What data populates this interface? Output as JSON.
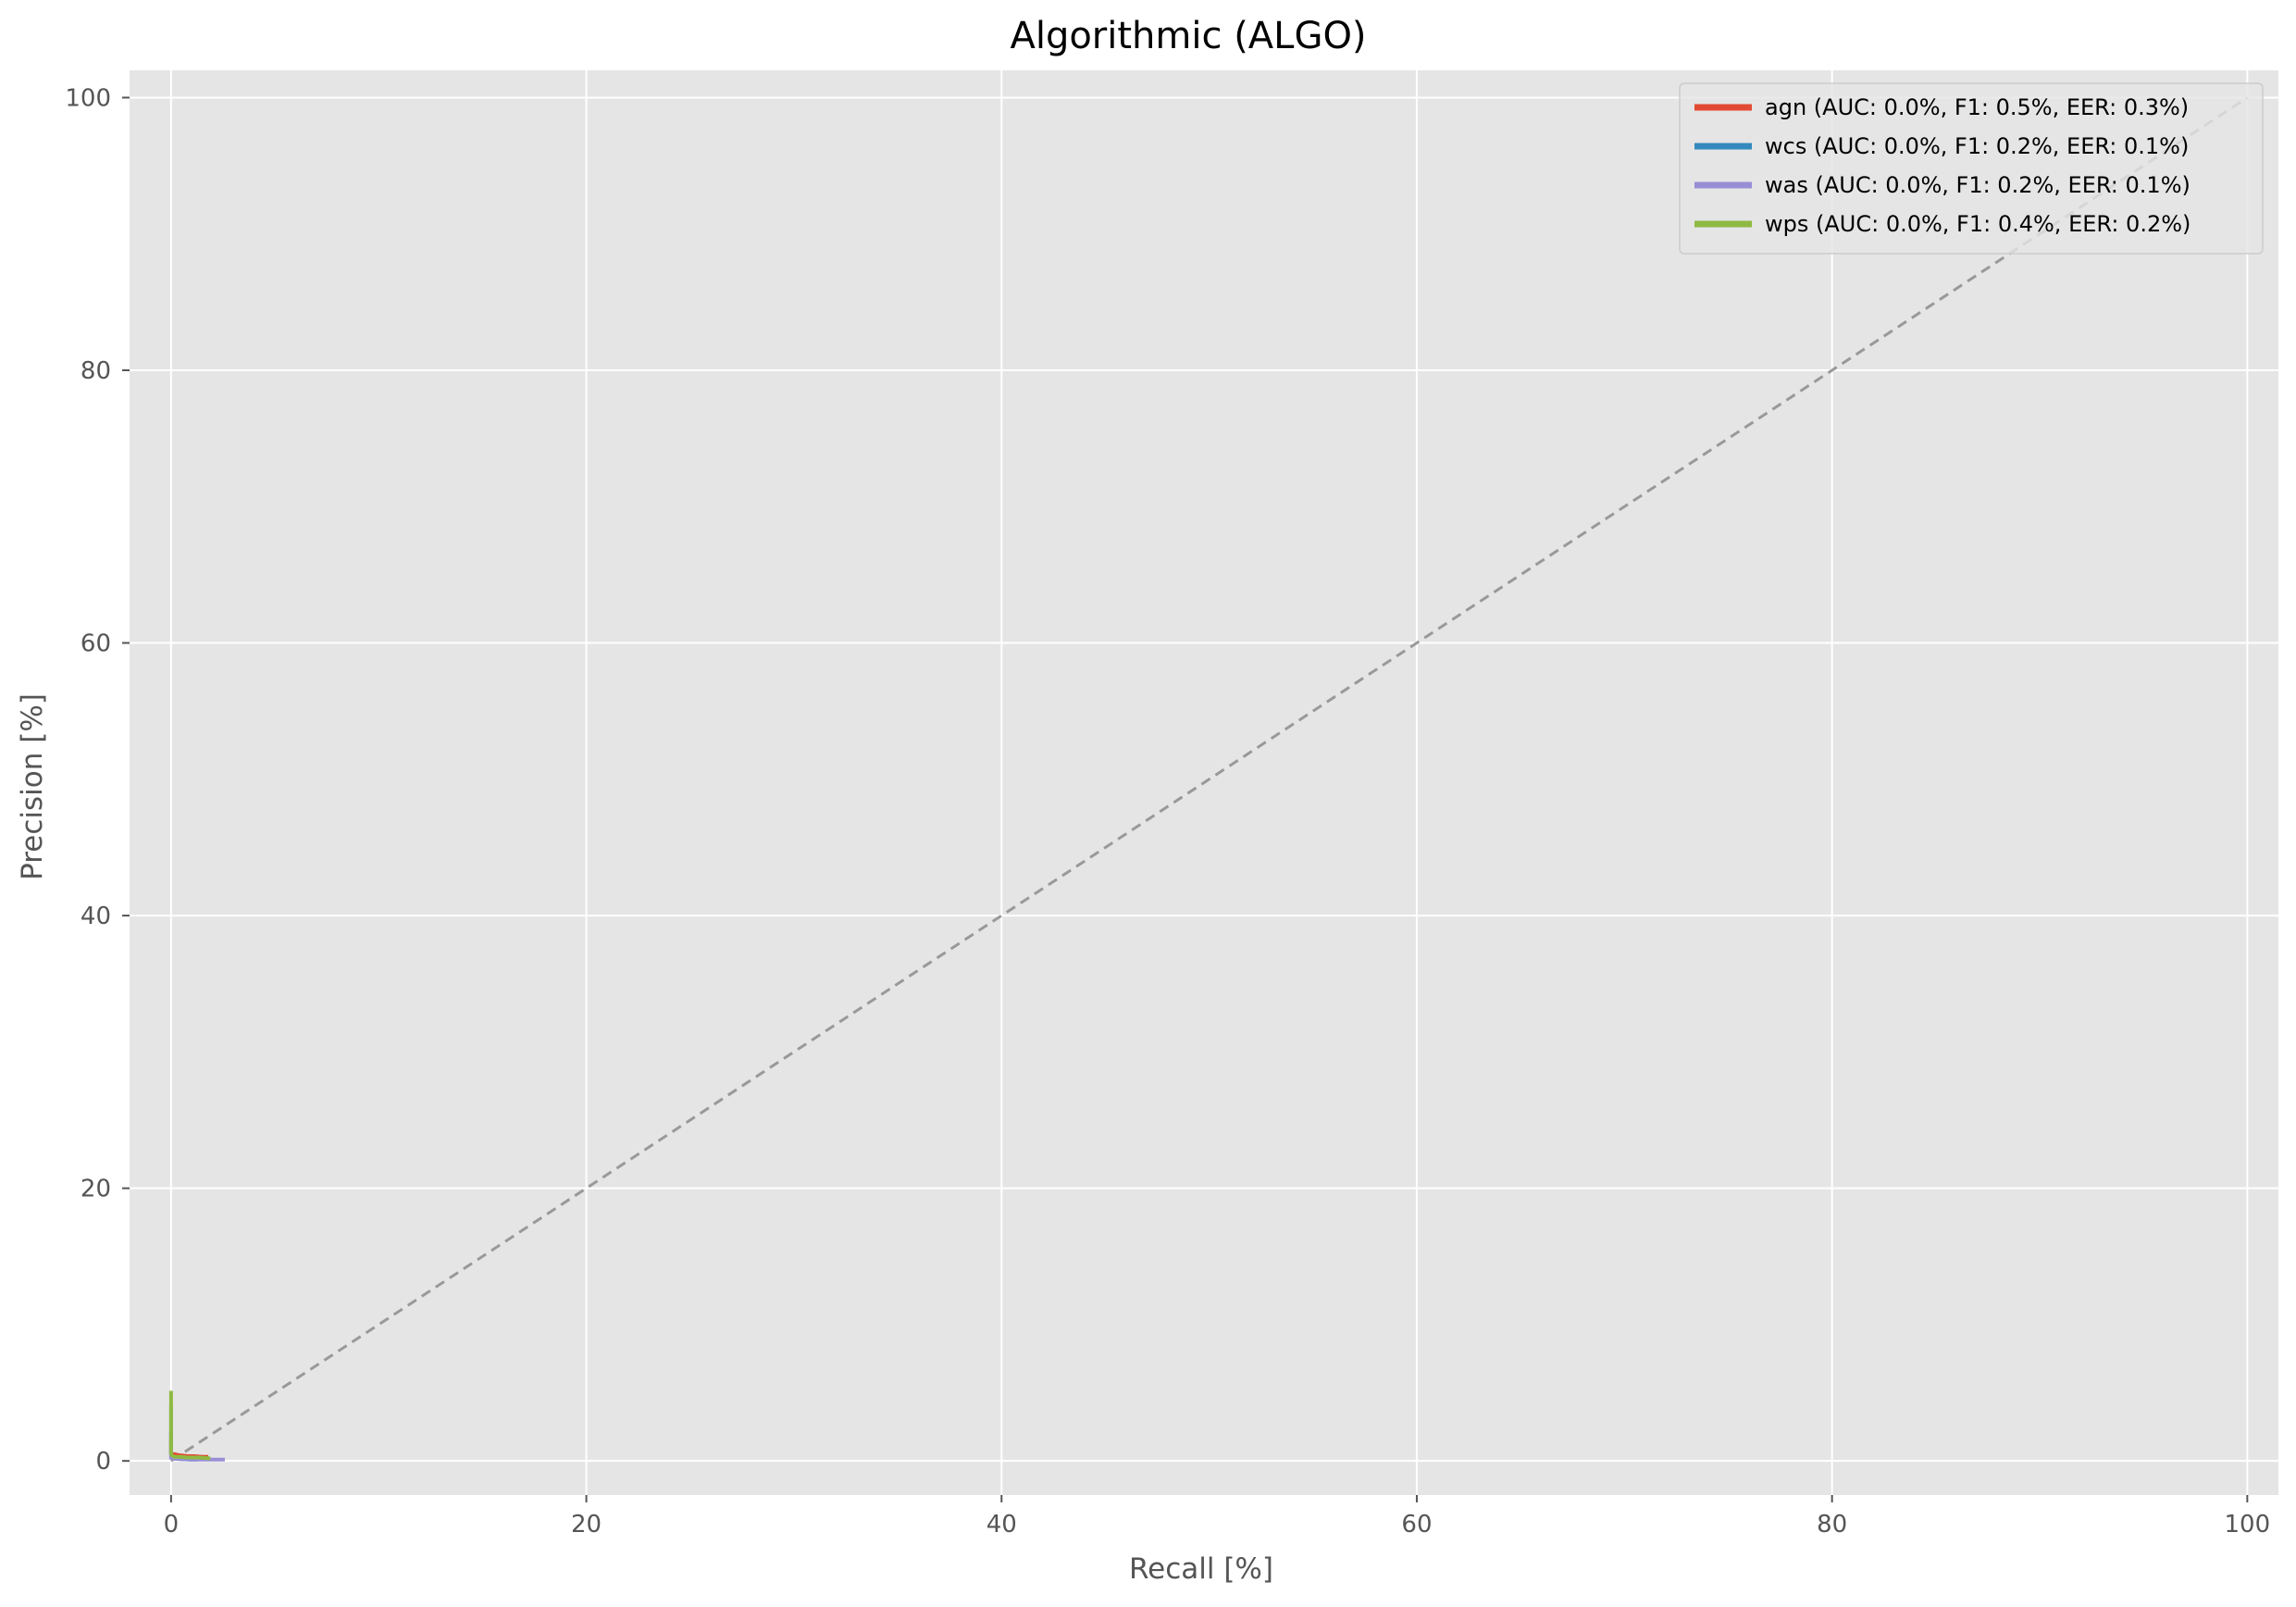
{
  "chart_data": {
    "type": "line",
    "title": "Algorithmic (ALGO)",
    "xlabel": "Recall [%]",
    "ylabel": "Precision [%]",
    "xlim": [
      -2,
      101.5
    ],
    "ylim": [
      -2.5,
      102
    ],
    "xticks": [
      0,
      20,
      40,
      60,
      80,
      100
    ],
    "yticks": [
      0,
      20,
      40,
      60,
      80,
      100
    ],
    "grid": true,
    "legend_position": "top-right",
    "reference_line": {
      "style": "dashed",
      "color": "#999999",
      "x": [
        0,
        100
      ],
      "y": [
        0,
        100
      ]
    },
    "series": [
      {
        "name": "agn (AUC: 0.0%, F1: 0.5%, EER: 0.3%)",
        "color": "#E24A33",
        "x": [
          0,
          0,
          0.05,
          0.15,
          0.3,
          0.5,
          0.8,
          1.1,
          1.5,
          1.7
        ],
        "y": [
          1.5,
          0.6,
          0.5,
          0.5,
          0.45,
          0.4,
          0.35,
          0.35,
          0.3,
          0.3
        ]
      },
      {
        "name": "wcs (AUC: 0.0%, F1: 0.2%, EER: 0.1%)",
        "color": "#348ABD",
        "x": [
          0,
          0,
          0.1,
          0.3,
          0.6,
          0.9,
          1.2
        ],
        "y": [
          2.0,
          0.3,
          0.2,
          0.15,
          0.12,
          0.1,
          0.1
        ]
      },
      {
        "name": "was (AUC: 0.0%, F1: 0.2%, EER: 0.1%)",
        "color": "#988ED5",
        "x": [
          0,
          0,
          0.2,
          0.6,
          1.2,
          1.8,
          2.5
        ],
        "y": [
          4.0,
          0.2,
          0.15,
          0.12,
          0.1,
          0.1,
          0.1
        ]
      },
      {
        "name": "wps (AUC: 0.0%, F1: 0.4%, EER: 0.2%)",
        "color": "#8EBA42",
        "x": [
          0,
          0,
          0.05,
          0.15,
          0.4,
          0.8,
          1.3,
          1.8
        ],
        "y": [
          5.0,
          0.5,
          0.4,
          0.3,
          0.3,
          0.25,
          0.25,
          0.2
        ]
      }
    ]
  }
}
